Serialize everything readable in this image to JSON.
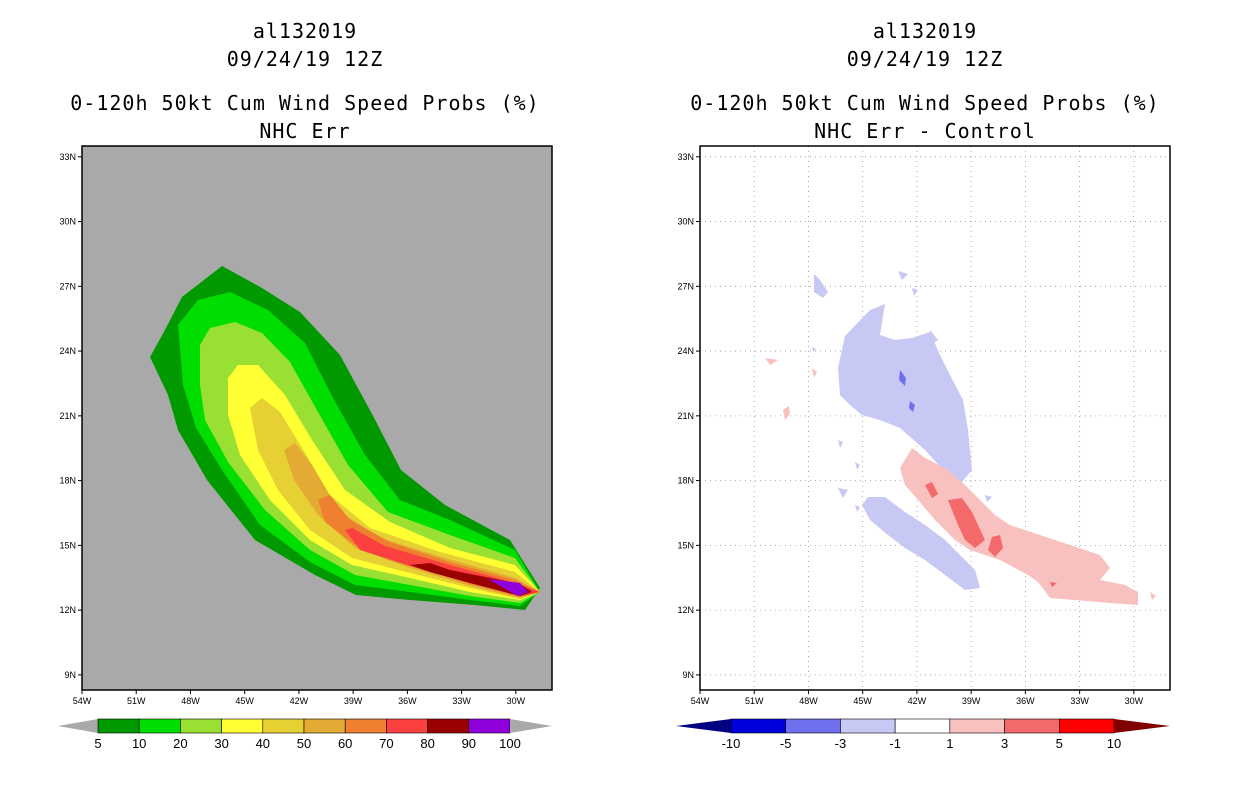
{
  "chart_data": [
    {
      "type": "contour",
      "title_lines": [
        "al132019",
        "09/24/19 12Z",
        "0-120h 50kt Cum Wind Speed Probs (%)",
        "NHC Err"
      ],
      "xlabel": "",
      "ylabel": "",
      "x_ticks": [
        "54W",
        "51W",
        "48W",
        "45W",
        "42W",
        "39W",
        "36W",
        "33W",
        "30W"
      ],
      "x_tick_values": [
        54,
        51,
        48,
        45,
        42,
        39,
        36,
        33,
        30
      ],
      "y_ticks": [
        "33N",
        "30N",
        "27N",
        "24N",
        "21N",
        "18N",
        "15N",
        "12N",
        "9N"
      ],
      "y_tick_values": [
        33,
        30,
        27,
        24,
        21,
        18,
        15,
        12,
        9
      ],
      "xlim_west": [
        54,
        28
      ],
      "ylim_north": [
        8.3,
        33.5
      ],
      "background": "#a9a9a9",
      "colorbar_levels": [
        "5",
        "10",
        "20",
        "30",
        "40",
        "50",
        "60",
        "70",
        "80",
        "90",
        "100"
      ],
      "colorbar_colors": [
        "#009900",
        "#00dd00",
        "#99e033",
        "#ffff33",
        "#e6d033",
        "#e3ab33",
        "#ee8030",
        "#fb4040",
        "#990000",
        "#8f00dd"
      ],
      "colorbar_ends": [
        "#a9a9a9",
        "#a9a9a9"
      ],
      "contour_levels": [
        5,
        10,
        20,
        30,
        40,
        50,
        60,
        70,
        80,
        90
      ]
    },
    {
      "type": "contour",
      "title_lines": [
        "al132019",
        "09/24/19 12Z",
        "0-120h 50kt Cum Wind Speed Probs (%)",
        "NHC Err - Control"
      ],
      "x_ticks": [
        "54W",
        "51W",
        "48W",
        "45W",
        "42W",
        "39W",
        "36W",
        "33W",
        "30W"
      ],
      "x_tick_values": [
        54,
        51,
        48,
        45,
        42,
        39,
        36,
        33,
        30
      ],
      "y_ticks": [
        "33N",
        "30N",
        "27N",
        "24N",
        "21N",
        "18N",
        "15N",
        "12N",
        "9N"
      ],
      "y_tick_values": [
        33,
        30,
        27,
        24,
        21,
        18,
        15,
        12,
        9
      ],
      "xlim_west": [
        54,
        28
      ],
      "ylim_north": [
        8.3,
        33.5
      ],
      "grid": "dotted",
      "colorbar_levels": [
        "-10",
        "-5",
        "-3",
        "-1",
        "1",
        "3",
        "5",
        "10"
      ],
      "colorbar_colors": [
        "#0000dd",
        "#7070ee",
        "#c8c8f5",
        "#ffffff",
        "#f9c0c0",
        "#f46a6a",
        "#ff0000"
      ],
      "colorbar_ends": [
        "#000080",
        "#800000"
      ]
    }
  ]
}
